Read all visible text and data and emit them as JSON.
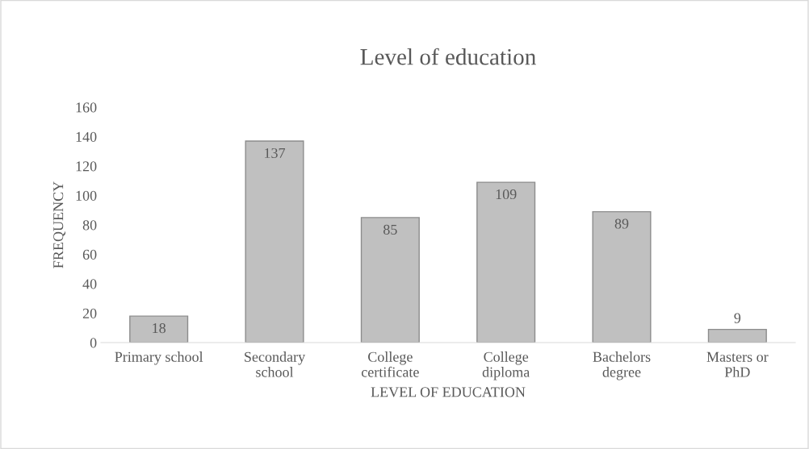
{
  "chart_data": {
    "type": "bar",
    "title": "Level of education",
    "xlabel": "LEVEL OF EDUCATION",
    "ylabel": "FREQUENCY",
    "categories": [
      "Primary school",
      "Secondary\nschool",
      "College\ncertificate",
      "College\ndiploma",
      "Bachelors\ndegree",
      "Masters or\nPhD"
    ],
    "values": [
      18,
      137,
      85,
      109,
      89,
      9
    ],
    "color": "#c0c0c0",
    "ylim": [
      0,
      160
    ],
    "yticks": [
      0,
      20,
      40,
      60,
      80,
      100,
      120,
      140,
      160
    ],
    "grid": false,
    "data_labels": true
  }
}
